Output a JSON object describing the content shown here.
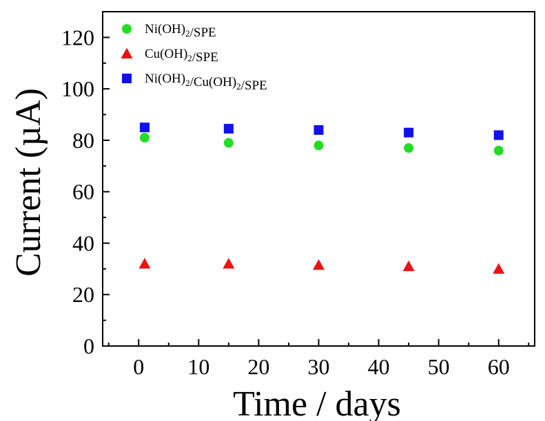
{
  "chart_data": {
    "type": "scatter",
    "title": "",
    "xlabel": "Time / days",
    "ylabel": "Current (µA)",
    "xlim": [
      -6,
      66
    ],
    "ylim": [
      0,
      130
    ],
    "xticks": [
      0,
      10,
      20,
      30,
      40,
      50,
      60
    ],
    "yticks": [
      0,
      20,
      40,
      60,
      80,
      100,
      120
    ],
    "grid": false,
    "legend_position": "top-left",
    "series": [
      {
        "name": "Ni(OH)2/SPE",
        "marker": "circle",
        "color": "#22dd22",
        "x": [
          1,
          15,
          30,
          45,
          60
        ],
        "y": [
          81,
          79,
          78,
          77,
          76
        ]
      },
      {
        "name": "Cu(OH)2/SPE",
        "marker": "triangle",
        "color": "#ee1111",
        "x": [
          1,
          15,
          30,
          45,
          60
        ],
        "y": [
          32,
          32,
          31.5,
          31,
          30
        ]
      },
      {
        "name": "Ni(OH)2/Cu(OH)2/SPE",
        "marker": "square",
        "color": "#1111ee",
        "x": [
          1,
          15,
          30,
          45,
          60
        ],
        "y": [
          85,
          84.5,
          84,
          83,
          82
        ]
      }
    ]
  }
}
